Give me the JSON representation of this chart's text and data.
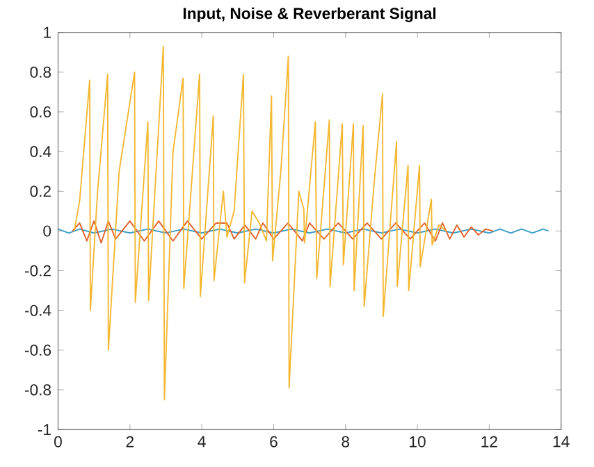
{
  "chart_data": {
    "type": "line",
    "title": "Input, Noise & Reverberant Signal",
    "xlim": [
      0,
      14
    ],
    "ylim": [
      -1,
      1
    ],
    "xticks": [
      0,
      2,
      4,
      6,
      8,
      10,
      12,
      14
    ],
    "yticks": [
      -1,
      -0.8,
      -0.6,
      -0.4,
      -0.2,
      0,
      0.2,
      0.4,
      0.6,
      0.8,
      1
    ],
    "series": [
      {
        "color": "#3a9cc4",
        "x": [
          0,
          0.3,
          0.6,
          1,
          1.5,
          2,
          2.5,
          3,
          3.5,
          4,
          4.5,
          5,
          5.5,
          6,
          6.5,
          7,
          7.5,
          8,
          8.5,
          9,
          9.5,
          10,
          10.5,
          11,
          11.5,
          12,
          12.3,
          12.6,
          12.9,
          13.2,
          13.5,
          13.65
        ],
        "values": [
          0.01,
          -0.01,
          0.01,
          -0.01,
          0.01,
          -0.01,
          0.01,
          -0.01,
          0.01,
          -0.01,
          0.01,
          -0.01,
          0.01,
          -0.01,
          0.01,
          -0.01,
          0.01,
          -0.01,
          0.01,
          -0.01,
          0.01,
          -0.01,
          0.01,
          -0.01,
          0.01,
          -0.01,
          0.01,
          -0.01,
          0.01,
          -0.01,
          0.01,
          0
        ]
      },
      {
        "color": "#e0622a",
        "x": [
          0.4,
          0.6,
          0.8,
          1,
          1.2,
          1.4,
          1.6,
          2,
          2.4,
          2.8,
          3.2,
          3.6,
          4,
          4.4,
          4.7,
          4.9,
          5.2,
          5.5,
          5.7,
          6,
          6.4,
          6.8,
          7,
          7.4,
          7.8,
          8.2,
          8.6,
          9,
          9.4,
          9.8,
          10.2,
          10.5,
          10.7,
          10.9,
          11.1,
          11.3,
          11.5,
          11.7,
          11.9,
          12.1
        ],
        "values": [
          0,
          0.04,
          -0.05,
          0.05,
          -0.06,
          0.05,
          -0.04,
          0.05,
          -0.05,
          0.05,
          -0.05,
          0.05,
          -0.04,
          0.04,
          0.04,
          -0.04,
          0.03,
          -0.04,
          0.04,
          -0.04,
          0.04,
          -0.05,
          0.04,
          -0.04,
          0.04,
          -0.04,
          0.04,
          -0.04,
          0.04,
          -0.04,
          0.04,
          -0.05,
          0.04,
          -0.04,
          0.03,
          -0.03,
          0.02,
          -0.02,
          0.01,
          0
        ]
      },
      {
        "color": "#f5b731",
        "x": [
          0.45,
          0.6,
          0.88,
          0.9,
          1.1,
          1.38,
          1.4,
          1.7,
          2.13,
          2.15,
          2.5,
          2.52,
          2.93,
          2.96,
          3.2,
          3.48,
          3.5,
          3.94,
          3.96,
          4.32,
          4.34,
          4.6,
          4.7,
          4.9,
          5.16,
          5.19,
          5.4,
          5.6,
          5.8,
          5.94,
          5.97,
          6.2,
          6.41,
          6.43,
          6.7,
          6.84,
          6.86,
          7.16,
          7.2,
          7.55,
          7.57,
          7.91,
          7.94,
          8.22,
          8.24,
          8.49,
          8.52,
          8.8,
          9.03,
          9.05,
          9.42,
          9.44,
          9.74,
          9.76,
          10.06,
          10.08,
          10.39,
          10.41,
          10.6,
          10.8
        ],
        "values": [
          0,
          0.15,
          0.76,
          -0.4,
          0.2,
          0.79,
          -0.6,
          0.3,
          0.8,
          -0.36,
          0.55,
          -0.35,
          0.93,
          -0.85,
          0.4,
          0.77,
          -0.29,
          0.79,
          -0.33,
          0.58,
          -0.25,
          0.2,
          -0.03,
          0.1,
          0.79,
          -0.26,
          0.1,
          0.04,
          -0.05,
          0.68,
          -0.15,
          0.3,
          0.88,
          -0.79,
          0.2,
          0.11,
          -0.06,
          0.55,
          -0.24,
          0.56,
          -0.28,
          0.54,
          -0.17,
          0.54,
          -0.3,
          0.53,
          -0.38,
          0.25,
          0.69,
          -0.43,
          0.45,
          -0.28,
          0.33,
          -0.3,
          0.33,
          -0.18,
          0.16,
          -0.07,
          0.03,
          0
        ]
      }
    ]
  }
}
